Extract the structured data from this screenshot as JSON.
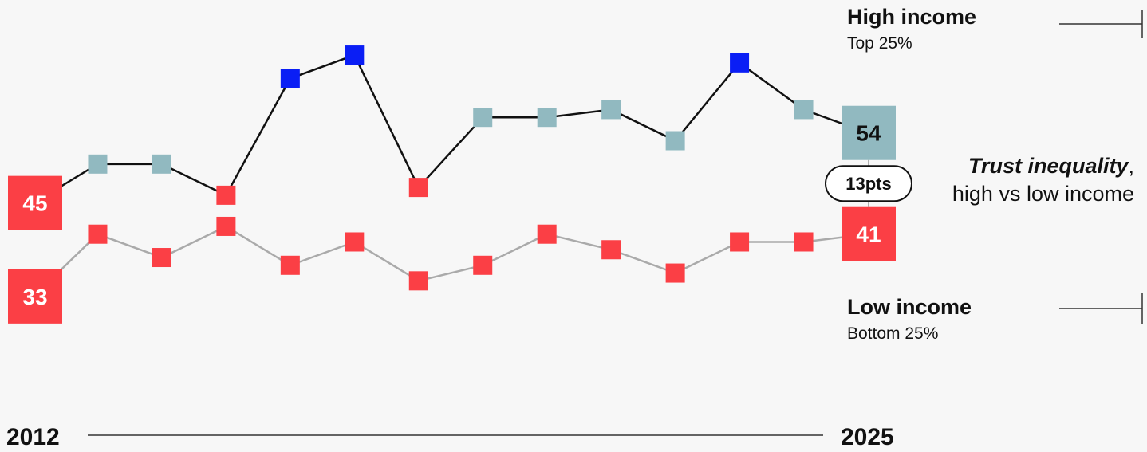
{
  "chart_data": {
    "type": "line",
    "x_start_label": "2012",
    "x_end_label": "2025",
    "x": [
      2012,
      2013,
      2014,
      2015,
      2016,
      2017,
      2018,
      2019,
      2020,
      2021,
      2022,
      2023,
      2024,
      2025
    ],
    "series": [
      {
        "name": "High income",
        "subtitle": "Top 25%",
        "values": [
          45,
          50,
          50,
          46,
          61,
          64,
          47,
          56,
          56,
          57,
          53,
          63,
          57,
          54
        ],
        "marker_colors": [
          "#fb3f45",
          "#91b9c0",
          "#91b9c0",
          "#fb3f45",
          "#0a1ef5",
          "#0a1ef5",
          "#fb3f45",
          "#91b9c0",
          "#91b9c0",
          "#91b9c0",
          "#91b9c0",
          "#0a1ef5",
          "#91b9c0",
          "#91b9c0"
        ],
        "line_color": "#111111",
        "start_label": "45",
        "end_label": "54"
      },
      {
        "name": "Low income",
        "subtitle": "Bottom 25%",
        "values": [
          33,
          41,
          38,
          42,
          37,
          40,
          35,
          37,
          41,
          39,
          36,
          40,
          40,
          41
        ],
        "marker_colors": [
          "#fb3f45",
          "#fb3f45",
          "#fb3f45",
          "#fb3f45",
          "#fb3f45",
          "#fb3f45",
          "#fb3f45",
          "#fb3f45",
          "#fb3f45",
          "#fb3f45",
          "#fb3f45",
          "#fb3f45",
          "#fb3f45",
          "#fb3f45"
        ],
        "line_color": "#aaaaaa",
        "start_label": "33",
        "end_label": "41"
      }
    ],
    "gap": {
      "label": "13pts",
      "title_bold": "Trust inequality",
      "title_rest": ",",
      "title_line2": "high vs low income"
    },
    "ylim": [
      25,
      68
    ]
  }
}
